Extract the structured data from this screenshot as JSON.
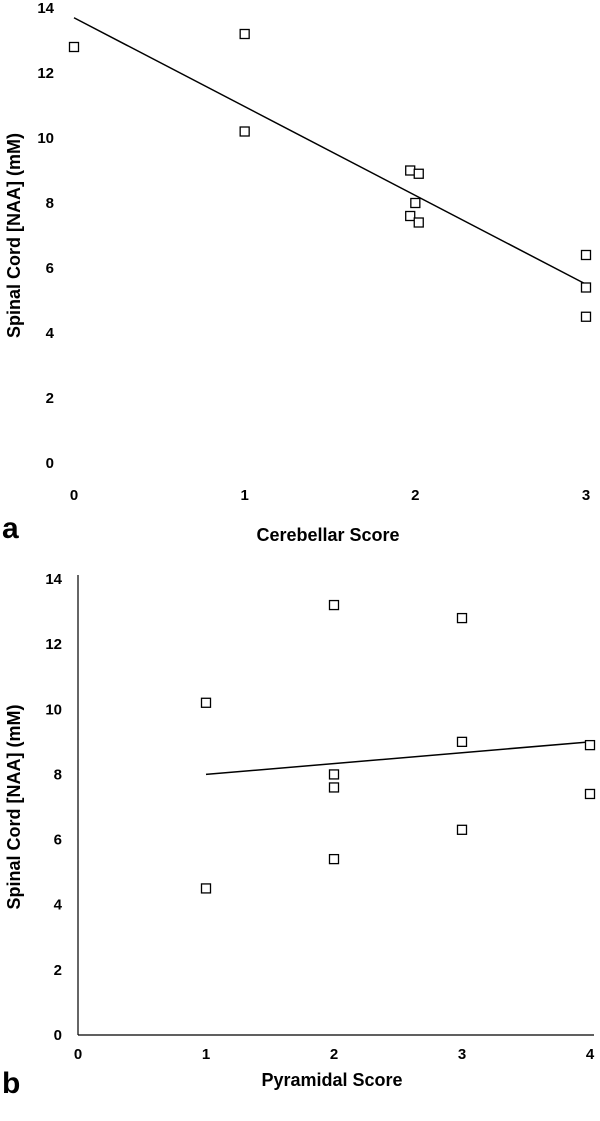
{
  "chart_data": [
    {
      "panel": "a",
      "type": "scatter",
      "xlabel": "Cerebellar Score",
      "ylabel": "Spinal Cord [NAA] (mM)",
      "xlim": [
        0,
        3
      ],
      "ylim": [
        0,
        14
      ],
      "xticks": [
        0,
        1,
        2,
        3
      ],
      "yticks": [
        0,
        2,
        4,
        6,
        8,
        10,
        12,
        14
      ],
      "grid": false,
      "points": [
        {
          "x": 0,
          "y": 12.8
        },
        {
          "x": 1,
          "y": 13.2
        },
        {
          "x": 1,
          "y": 10.2
        },
        {
          "x": 1.97,
          "y": 9.0
        },
        {
          "x": 2.02,
          "y": 8.9
        },
        {
          "x": 2.0,
          "y": 8.0
        },
        {
          "x": 1.97,
          "y": 7.6
        },
        {
          "x": 2.02,
          "y": 7.4
        },
        {
          "x": 3,
          "y": 6.4
        },
        {
          "x": 3,
          "y": 5.4
        },
        {
          "x": 3,
          "y": 4.5
        }
      ],
      "trendline": {
        "x": [
          0,
          3
        ],
        "y": [
          13.7,
          5.5
        ]
      }
    },
    {
      "panel": "b",
      "type": "scatter",
      "xlabel": "Pyramidal Score",
      "ylabel": "Spinal Cord [NAA] (mM)",
      "xlim": [
        0,
        4
      ],
      "ylim": [
        0,
        14
      ],
      "xticks": [
        0,
        1,
        2,
        3,
        4
      ],
      "yticks": [
        0,
        2,
        4,
        6,
        8,
        10,
        12,
        14
      ],
      "grid": false,
      "points": [
        {
          "x": 1,
          "y": 10.2
        },
        {
          "x": 1,
          "y": 4.5
        },
        {
          "x": 2,
          "y": 13.2
        },
        {
          "x": 2,
          "y": 8.0
        },
        {
          "x": 2,
          "y": 7.6
        },
        {
          "x": 2,
          "y": 5.4
        },
        {
          "x": 3,
          "y": 12.8
        },
        {
          "x": 3,
          "y": 9.0
        },
        {
          "x": 3,
          "y": 6.3
        },
        {
          "x": 4,
          "y": 8.9
        },
        {
          "x": 4,
          "y": 7.4
        }
      ],
      "trendline": {
        "x": [
          1,
          4
        ],
        "y": [
          8.0,
          9.0
        ]
      }
    }
  ]
}
